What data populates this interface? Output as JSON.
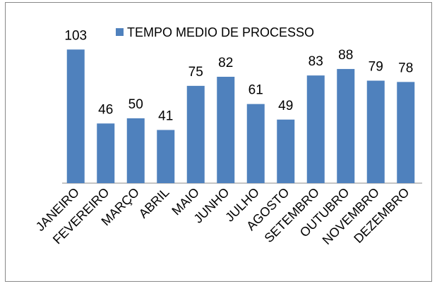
{
  "chart_data": {
    "type": "bar",
    "categories": [
      "JANEIRO",
      "FEVEREIRO",
      "MARÇO",
      "ABRIL",
      "MAIO",
      "JUNHO",
      "JULHO",
      "AGOSTO",
      "SETEMBRO",
      "OUTUBRO",
      "NOVEMBRO",
      "DEZEMBRO"
    ],
    "series": [
      {
        "name": "TEMPO MEDIO DE PROCESSO",
        "color": "#4f81bd",
        "values": [
          103,
          46,
          50,
          41,
          75,
          82,
          61,
          49,
          83,
          88,
          79,
          78
        ]
      }
    ],
    "ylim": [
      0,
      120
    ],
    "legend": "top"
  }
}
